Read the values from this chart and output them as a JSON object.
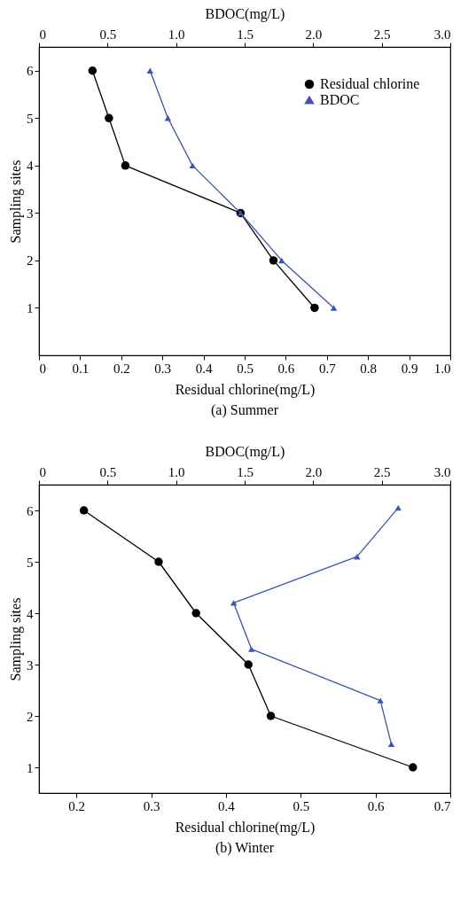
{
  "chart_data": [
    {
      "type": "line",
      "title": "(a) Summer",
      "xlabel": "Residual chlorine(mg/L)",
      "x2label": "BDOC(mg/L)",
      "ylabel": "Sampling sites",
      "xlim": [
        0,
        1
      ],
      "xticks": [
        0,
        0.1,
        0.2,
        0.3,
        0.4,
        0.5,
        0.6,
        0.7,
        0.8,
        0.9,
        {
          "value": 1,
          "label": "1.0"
        }
      ],
      "x2lim": [
        0,
        3
      ],
      "x2ticks": [
        0,
        0.5,
        {
          "value": 1,
          "label": "1.0"
        },
        1.5,
        {
          "value": 2,
          "label": "2.0"
        },
        2.5,
        {
          "value": 3,
          "label": "3.0"
        }
      ],
      "ylim": [
        0,
        6.5
      ],
      "yticks": [
        1,
        2,
        3,
        4,
        5,
        6
      ],
      "grid": false,
      "legend": "top right",
      "series": [
        {
          "name": "Residual chlorine",
          "color": "#000000",
          "marker": "circle",
          "x": [
            0.13,
            0.17,
            0.21,
            0.49,
            0.57,
            0.67
          ],
          "values": [
            6,
            5,
            4,
            3,
            2,
            1
          ]
        },
        {
          "name": "BDOC",
          "color": "#3a55b4",
          "marker": "triangle",
          "axis": "x2",
          "x": [
            0.81,
            0.94,
            1.12,
            1.47,
            1.77,
            2.15
          ],
          "values": [
            6,
            5,
            4,
            3,
            2,
            1
          ]
        }
      ]
    },
    {
      "type": "line",
      "title": "(b) Winter",
      "xlabel": "Residual chlorine(mg/L)",
      "x2label": "BDOC(mg/L)",
      "ylabel": "Sampling sites",
      "xlim": [
        0.15,
        0.7
      ],
      "xticks": [
        0.2,
        0.3,
        0.4,
        0.5,
        0.6,
        0.7
      ],
      "x2lim": [
        0,
        3
      ],
      "x2ticks": [
        0,
        0.5,
        {
          "value": 1,
          "label": "1.0"
        },
        1.5,
        {
          "value": 2,
          "label": "2.0"
        },
        2.5,
        {
          "value": 3,
          "label": "3.0"
        }
      ],
      "ylim": [
        0.5,
        6.5
      ],
      "yticks": [
        1,
        2,
        3,
        4,
        5,
        6
      ],
      "grid": false,
      "legend": "top right",
      "series": [
        {
          "name": "Residual chlorine",
          "color": "#000000",
          "marker": "circle",
          "x": [
            0.21,
            0.31,
            0.36,
            0.43,
            0.46,
            0.65
          ],
          "values": [
            6,
            5,
            4,
            3,
            2,
            1
          ]
        },
        {
          "name": "BDOC",
          "color": "#3a55b4",
          "marker": "triangle",
          "axis": "x2",
          "x": [
            2.62,
            2.32,
            1.42,
            1.55,
            2.49,
            2.57
          ],
          "values": [
            6.05,
            5.1,
            4.2,
            3.3,
            2.3,
            1.45
          ]
        }
      ]
    }
  ]
}
